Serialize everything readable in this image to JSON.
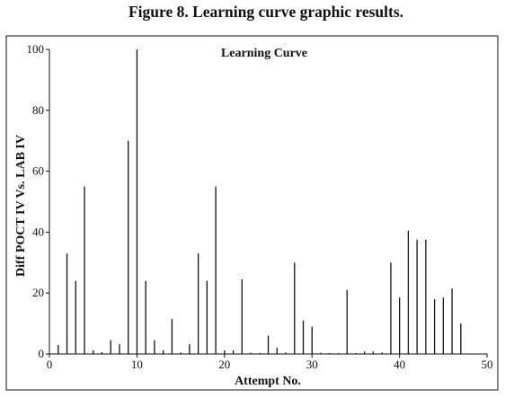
{
  "figure": {
    "caption": "Figure 8. Learning curve graphic results."
  },
  "colors": {
    "axis": "#111111",
    "bar": "#111111",
    "background": "#ffffff"
  },
  "chart_data": {
    "type": "bar",
    "title": "Learning Curve",
    "xlabel": "Attempt No.",
    "ylabel": "Diff POCT IV Vs. LAB IV",
    "xlim": [
      0,
      50
    ],
    "ylim": [
      0,
      100
    ],
    "xticks": [
      0,
      10,
      20,
      30,
      40,
      50
    ],
    "yticks": [
      0,
      20,
      40,
      60,
      80,
      100
    ],
    "grid": false,
    "legend": "none",
    "x": [
      1,
      2,
      3,
      4,
      5,
      6,
      7,
      8,
      9,
      10,
      11,
      12,
      13,
      14,
      15,
      16,
      17,
      18,
      19,
      20,
      21,
      22,
      23,
      24,
      25,
      26,
      27,
      28,
      29,
      30,
      31,
      32,
      33,
      34,
      35,
      36,
      37,
      38,
      39,
      40,
      41,
      42,
      43,
      44,
      45,
      46,
      47
    ],
    "values": [
      3,
      33,
      24,
      55,
      1.2,
      0.6,
      4.5,
      3.2,
      70,
      100,
      24,
      4.5,
      1.2,
      11.5,
      0.5,
      3.2,
      33,
      24,
      55,
      1.2,
      1.2,
      24.5,
      0.4,
      0.3,
      6,
      2,
      0.5,
      30,
      11,
      9,
      0.4,
      0.3,
      0.3,
      21,
      0.3,
      0.8,
      0.8,
      0.5,
      30,
      18.5,
      40.5,
      37.5,
      37.5,
      18,
      18.5,
      21.5,
      10
    ]
  }
}
